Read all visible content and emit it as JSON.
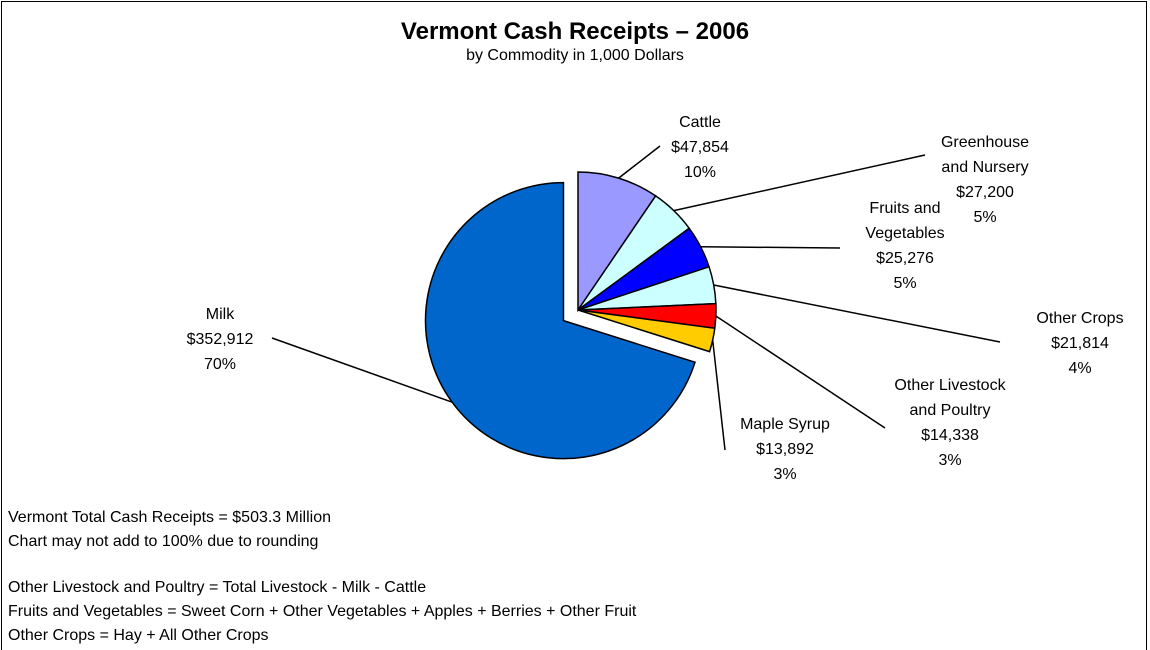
{
  "chart_data": {
    "type": "pie",
    "title": "Vermont Cash Receipts – 2006",
    "subtitle": "by Commodity in 1,000 Dollars",
    "categories": [
      "Cattle",
      "Greenhouse\nand Nursery",
      "Fruits and\nVegetables",
      "Other Crops",
      "Other Livestock\nand Poultry",
      "Maple Syrup",
      "Milk"
    ],
    "values": [
      47854,
      27200,
      25276,
      21814,
      14338,
      13892,
      352912
    ],
    "value_labels": [
      "$47,854",
      "$27,200",
      "$25,276",
      "$21,814",
      "$14,338",
      "$13,892",
      "$352,912"
    ],
    "percent_labels": [
      "10%",
      "5%",
      "5%",
      "4%",
      "3%",
      "3%",
      "70%"
    ],
    "colors": [
      "#9999ff",
      "#ccffff",
      "#0000ff",
      "#ccffff",
      "#ff0000",
      "#ffcc00",
      "#0066cc"
    ],
    "notes": [
      "Vermont Total Cash Receipts = $503.3 Million",
      "Chart may not add to 100% due to rounding",
      "Other Livestock and Poultry = Total Livestock - Milk - Cattle",
      "Fruits and Vegetables = Sweet Corn + Other Vegetables + Apples + Berries + Other Fruit",
      "Other Crops = Hay + All Other Crops"
    ]
  }
}
